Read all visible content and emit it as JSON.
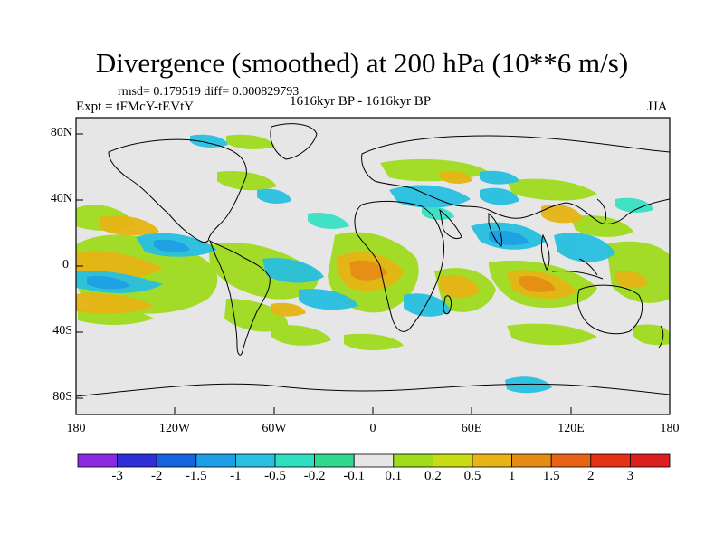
{
  "title": "Divergence (smoothed) at 200 hPa (10**6 m/s)",
  "stats": "rmsd= 0.179519 diff= 0.000829793",
  "experiment": "Expt = tFMcY-tEVtY",
  "period": "1616kyr BP - 1616kyr BP",
  "season": "JJA",
  "map": {
    "y_ticks": [
      "80N",
      "40N",
      "0",
      "40S",
      "80S"
    ],
    "x_ticks": [
      "180",
      "120W",
      "60W",
      "0",
      "60E",
      "120E",
      "180"
    ],
    "background_color": "#e6e6e6"
  },
  "colorbar": {
    "labels": [
      "-3",
      "-2",
      "-1.5",
      "-1",
      "-0.5",
      "-0.2",
      "-0.1",
      "0.1",
      "0.2",
      "0.5",
      "1",
      "1.5",
      "2",
      "3"
    ],
    "colors": [
      "#8a2be2",
      "#3030d8",
      "#1464e0",
      "#1e9ee6",
      "#28c0e0",
      "#2ee0c0",
      "#30d890",
      "#e6e6e6",
      "#a0dc1e",
      "#c8dc14",
      "#e6b414",
      "#e68c14",
      "#e66414",
      "#e63214",
      "#dc1e1e"
    ]
  }
}
